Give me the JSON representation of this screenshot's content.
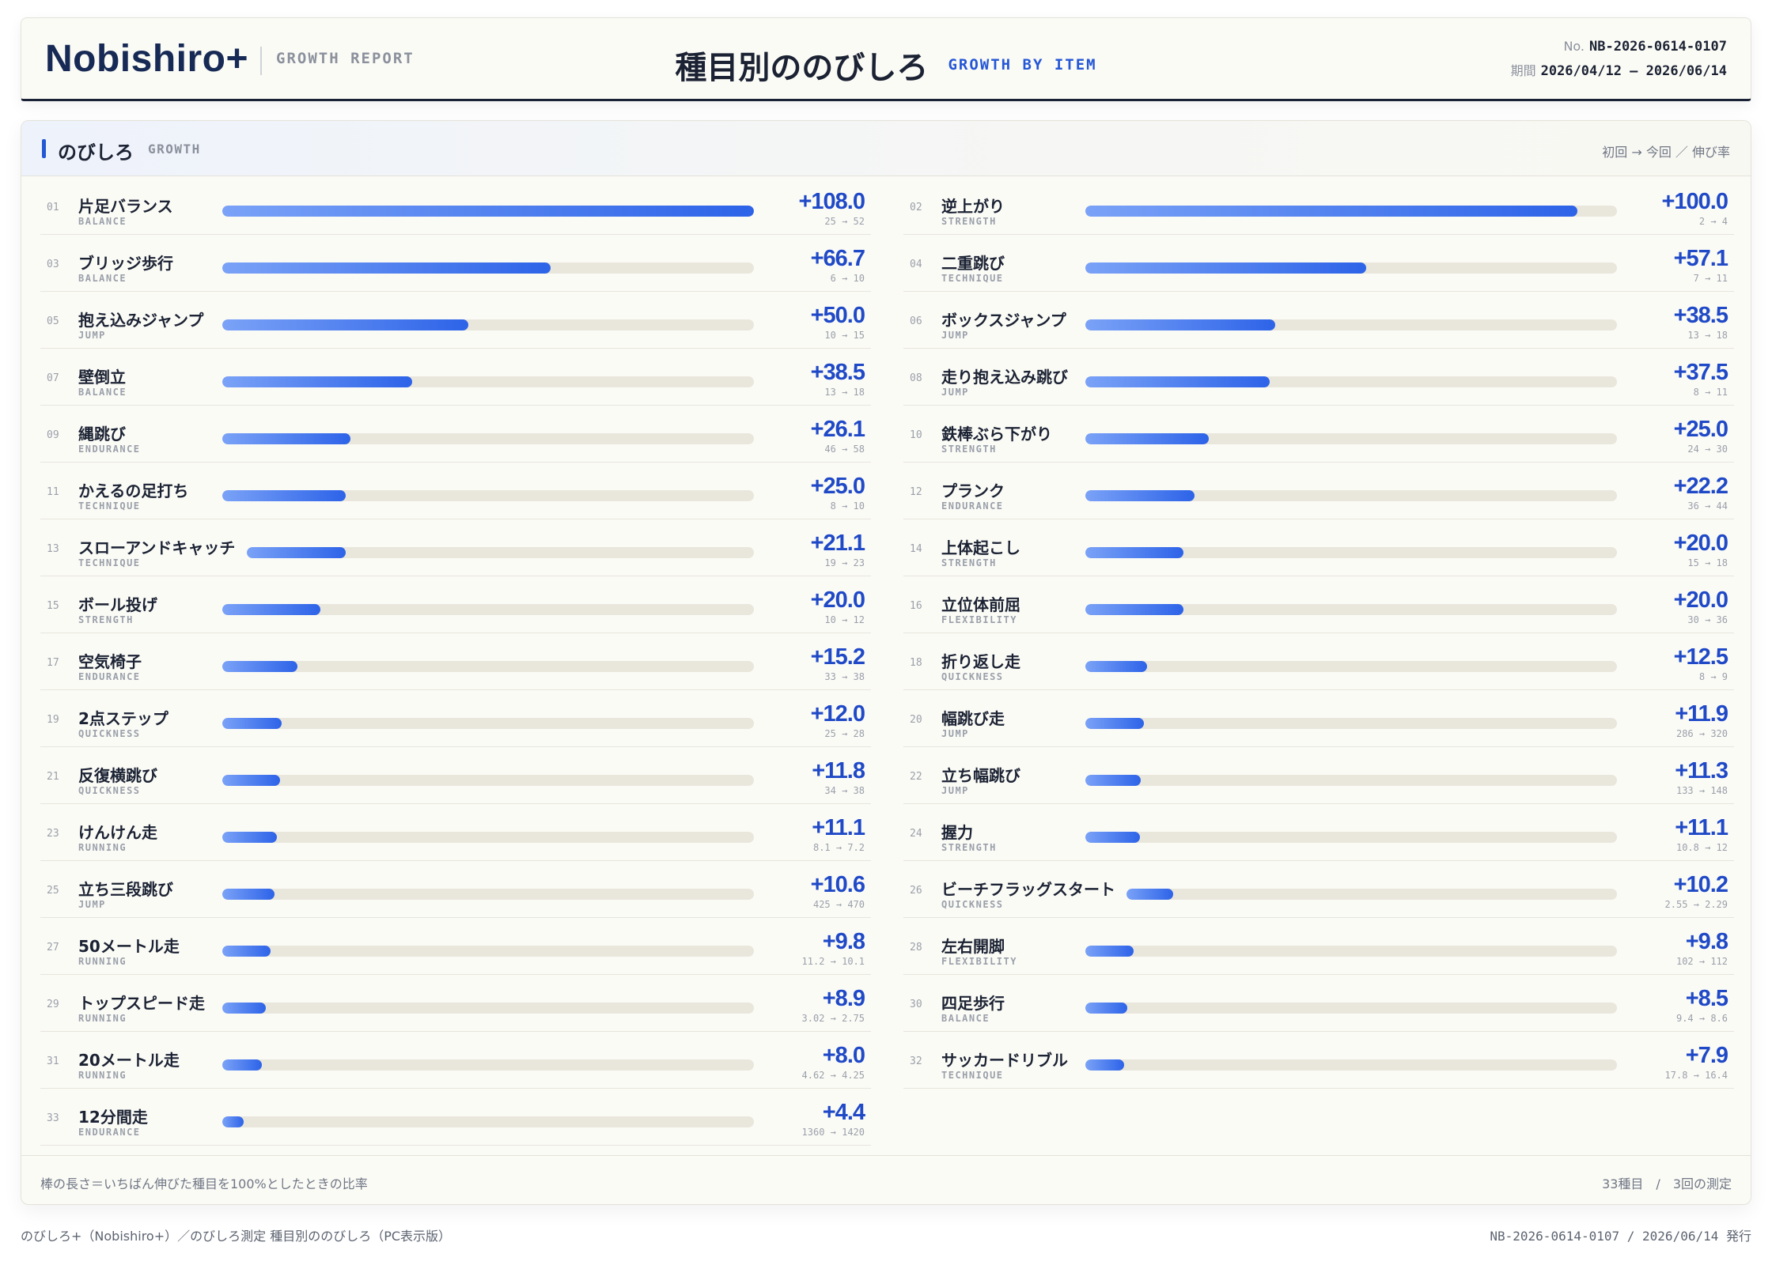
{
  "header": {
    "logo": "Nobishiro+",
    "logo_tag": "GROWTH REPORT",
    "title": "種目別ののびしろ",
    "title_en": "GROWTH BY ITEM",
    "doc_no_label": "No.",
    "doc_no": "NB-2026-0614-0107",
    "period_label": "期間",
    "period": "2026/04/12 — 2026/06/14"
  },
  "panel": {
    "title": "のびしろ",
    "title_en": "GROWTH",
    "legend": "初回 → 今回 ／ 伸び率",
    "footnote": "棒の長さ＝いちばん伸びた種目を100%としたときの比率",
    "summary": "33種目　/　3回の測定"
  },
  "colors": {
    "accent": "#2457d6",
    "bar_start": "#7aa2f7",
    "bar_end": "#2d63e8",
    "track": "#e9e6dc"
  },
  "items": [
    {
      "no": "01",
      "name": "片足バランス",
      "category": "BALANCE",
      "growth": "+108.0",
      "value": 108.0,
      "range": "25 → 52"
    },
    {
      "no": "02",
      "name": "逆上がり",
      "category": "STRENGTH",
      "growth": "+100.0",
      "value": 100.0,
      "range": "2 → 4"
    },
    {
      "no": "03",
      "name": "ブリッジ歩行",
      "category": "BALANCE",
      "growth": "+66.7",
      "value": 66.7,
      "range": "6 → 10"
    },
    {
      "no": "04",
      "name": "二重跳び",
      "category": "TECHNIQUE",
      "growth": "+57.1",
      "value": 57.1,
      "range": "7 → 11"
    },
    {
      "no": "05",
      "name": "抱え込みジャンプ",
      "category": "JUMP",
      "growth": "+50.0",
      "value": 50.0,
      "range": "10 → 15"
    },
    {
      "no": "06",
      "name": "ボックスジャンプ",
      "category": "JUMP",
      "growth": "+38.5",
      "value": 38.5,
      "range": "13 → 18"
    },
    {
      "no": "07",
      "name": "壁倒立",
      "category": "BALANCE",
      "growth": "+38.5",
      "value": 38.5,
      "range": "13 → 18"
    },
    {
      "no": "08",
      "name": "走り抱え込み跳び",
      "category": "JUMP",
      "growth": "+37.5",
      "value": 37.5,
      "range": "8 → 11"
    },
    {
      "no": "09",
      "name": "縄跳び",
      "category": "ENDURANCE",
      "growth": "+26.1",
      "value": 26.1,
      "range": "46 → 58"
    },
    {
      "no": "10",
      "name": "鉄棒ぶら下がり",
      "category": "STRENGTH",
      "growth": "+25.0",
      "value": 25.0,
      "range": "24 → 30"
    },
    {
      "no": "11",
      "name": "かえるの足打ち",
      "category": "TECHNIQUE",
      "growth": "+25.0",
      "value": 25.0,
      "range": "8 → 10"
    },
    {
      "no": "12",
      "name": "プランク",
      "category": "ENDURANCE",
      "growth": "+22.2",
      "value": 22.2,
      "range": "36 → 44"
    },
    {
      "no": "13",
      "name": "スローアンドキャッチ",
      "category": "TECHNIQUE",
      "growth": "+21.1",
      "value": 21.1,
      "range": "19 → 23"
    },
    {
      "no": "14",
      "name": "上体起こし",
      "category": "STRENGTH",
      "growth": "+20.0",
      "value": 20.0,
      "range": "15 → 18"
    },
    {
      "no": "15",
      "name": "ボール投げ",
      "category": "STRENGTH",
      "growth": "+20.0",
      "value": 20.0,
      "range": "10 → 12"
    },
    {
      "no": "16",
      "name": "立位体前屈",
      "category": "FLEXIBILITY",
      "growth": "+20.0",
      "value": 20.0,
      "range": "30 → 36"
    },
    {
      "no": "17",
      "name": "空気椅子",
      "category": "ENDURANCE",
      "growth": "+15.2",
      "value": 15.2,
      "range": "33 → 38"
    },
    {
      "no": "18",
      "name": "折り返し走",
      "category": "QUICKNESS",
      "growth": "+12.5",
      "value": 12.5,
      "range": "8 → 9"
    },
    {
      "no": "19",
      "name": "2点ステップ",
      "category": "QUICKNESS",
      "growth": "+12.0",
      "value": 12.0,
      "range": "25 → 28"
    },
    {
      "no": "20",
      "name": "幅跳び走",
      "category": "JUMP",
      "growth": "+11.9",
      "value": 11.9,
      "range": "286 → 320"
    },
    {
      "no": "21",
      "name": "反復横跳び",
      "category": "QUICKNESS",
      "growth": "+11.8",
      "value": 11.8,
      "range": "34 → 38"
    },
    {
      "no": "22",
      "name": "立ち幅跳び",
      "category": "JUMP",
      "growth": "+11.3",
      "value": 11.3,
      "range": "133 → 148"
    },
    {
      "no": "23",
      "name": "けんけん走",
      "category": "RUNNING",
      "growth": "+11.1",
      "value": 11.1,
      "range": "8.1 → 7.2"
    },
    {
      "no": "24",
      "name": "握力",
      "category": "STRENGTH",
      "growth": "+11.1",
      "value": 11.1,
      "range": "10.8 → 12"
    },
    {
      "no": "25",
      "name": "立ち三段跳び",
      "category": "JUMP",
      "growth": "+10.6",
      "value": 10.6,
      "range": "425 → 470"
    },
    {
      "no": "26",
      "name": "ビーチフラッグスタート",
      "category": "QUICKNESS",
      "growth": "+10.2",
      "value": 10.2,
      "range": "2.55 → 2.29"
    },
    {
      "no": "27",
      "name": "50メートル走",
      "category": "RUNNING",
      "growth": "+9.8",
      "value": 9.8,
      "range": "11.2 → 10.1"
    },
    {
      "no": "28",
      "name": "左右開脚",
      "category": "FLEXIBILITY",
      "growth": "+9.8",
      "value": 9.8,
      "range": "102 → 112"
    },
    {
      "no": "29",
      "name": "トップスピード走",
      "category": "RUNNING",
      "growth": "+8.9",
      "value": 8.9,
      "range": "3.02 → 2.75"
    },
    {
      "no": "30",
      "name": "四足歩行",
      "category": "BALANCE",
      "growth": "+8.5",
      "value": 8.5,
      "range": "9.4 → 8.6"
    },
    {
      "no": "31",
      "name": "20メートル走",
      "category": "RUNNING",
      "growth": "+8.0",
      "value": 8.0,
      "range": "4.62 → 4.25"
    },
    {
      "no": "32",
      "name": "サッカードリブル",
      "category": "TECHNIQUE",
      "growth": "+7.9",
      "value": 7.9,
      "range": "17.8 → 16.4"
    },
    {
      "no": "33",
      "name": "12分間走",
      "category": "ENDURANCE",
      "growth": "+4.4",
      "value": 4.4,
      "range": "1360 → 1420"
    }
  ],
  "footer": {
    "left": "のびしろ+（Nobishiro+）／のびしろ測定 種目別ののびしろ（PC表示版）",
    "right": "NB-2026-0614-0107 / 2026/06/14 発行"
  }
}
